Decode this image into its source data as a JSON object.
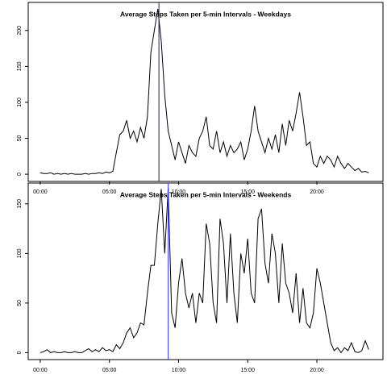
{
  "chart_data": [
    {
      "type": "line",
      "title": "Average Steps Taken per 5-min Intervals - Weekdays",
      "color": "#000000",
      "x": [
        0,
        0.25,
        0.5,
        0.75,
        1,
        1.25,
        1.5,
        1.75,
        2,
        2.25,
        2.5,
        2.75,
        3,
        3.25,
        3.5,
        3.75,
        4,
        4.25,
        4.5,
        4.75,
        5,
        5.25,
        5.5,
        5.75,
        6,
        6.25,
        6.5,
        6.75,
        7,
        7.25,
        7.5,
        7.75,
        8,
        8.25,
        8.5,
        8.75,
        9,
        9.25,
        9.5,
        9.75,
        10,
        10.25,
        10.5,
        10.75,
        11,
        11.25,
        11.5,
        11.75,
        12,
        12.25,
        12.5,
        12.75,
        13,
        13.25,
        13.5,
        13.75,
        14,
        14.25,
        14.5,
        14.75,
        15,
        15.25,
        15.5,
        15.75,
        16,
        16.25,
        16.5,
        16.75,
        17,
        17.25,
        17.5,
        17.75,
        18,
        18.25,
        18.5,
        18.75,
        19,
        19.25,
        19.5,
        19.75,
        20,
        20.25,
        20.5,
        20.75,
        21,
        21.25,
        21.5,
        21.75,
        22,
        22.25,
        22.5,
        22.75,
        23,
        23.25,
        23.5,
        23.75
      ],
      "values": [
        2,
        1,
        1,
        2,
        0,
        1,
        0,
        1,
        0,
        1,
        0,
        0,
        0,
        1,
        0,
        1,
        1,
        2,
        1,
        3,
        2,
        4,
        30,
        55,
        60,
        75,
        50,
        60,
        45,
        65,
        50,
        80,
        170,
        200,
        230,
        185,
        110,
        60,
        40,
        20,
        45,
        30,
        15,
        40,
        30,
        25,
        50,
        60,
        80,
        40,
        35,
        60,
        30,
        45,
        25,
        40,
        30,
        35,
        45,
        20,
        35,
        60,
        95,
        60,
        45,
        30,
        50,
        35,
        55,
        30,
        70,
        40,
        75,
        60,
        85,
        114,
        80,
        40,
        45,
        15,
        10,
        25,
        15,
        25,
        20,
        10,
        25,
        15,
        8,
        15,
        10,
        5,
        8,
        3,
        4,
        2
      ],
      "xlim": [
        -0.87,
        24.78
      ],
      "ylim": [
        -10,
        239
      ],
      "xticks": [
        {
          "value": 0,
          "label": "00:00"
        },
        {
          "value": 5,
          "label": "05:00"
        },
        {
          "value": 10,
          "label": "10:00"
        },
        {
          "value": 15,
          "label": "15:00"
        },
        {
          "value": 20,
          "label": "20:00"
        }
      ],
      "yticks": [
        0,
        50,
        100,
        150,
        200
      ],
      "vline": {
        "x": 8.58,
        "color": "#1c1c70"
      }
    },
    {
      "type": "line",
      "title": "Average Steps Taken per 5-min Intervals - Weekends",
      "color": "#000000",
      "x": [
        0,
        0.25,
        0.5,
        0.75,
        1,
        1.25,
        1.5,
        1.75,
        2,
        2.25,
        2.5,
        2.75,
        3,
        3.25,
        3.5,
        3.75,
        4,
        4.25,
        4.5,
        4.75,
        5,
        5.25,
        5.5,
        5.75,
        6,
        6.25,
        6.5,
        6.75,
        7,
        7.25,
        7.5,
        7.75,
        8,
        8.25,
        8.5,
        8.75,
        9,
        9.25,
        9.5,
        9.75,
        10,
        10.25,
        10.5,
        10.75,
        11,
        11.25,
        11.5,
        11.75,
        12,
        12.25,
        12.5,
        12.75,
        13,
        13.25,
        13.5,
        13.75,
        14,
        14.25,
        14.5,
        14.75,
        15,
        15.25,
        15.5,
        15.75,
        16,
        16.25,
        16.5,
        16.75,
        17,
        17.25,
        17.5,
        17.75,
        18,
        18.25,
        18.5,
        18.75,
        19,
        19.25,
        19.5,
        19.75,
        20,
        20.25,
        20.5,
        20.75,
        21,
        21.25,
        21.5,
        21.75,
        22,
        22.25,
        22.5,
        22.75,
        23,
        23.25,
        23.5,
        23.75
      ],
      "values": [
        0,
        1,
        3,
        0,
        1,
        0,
        0,
        1,
        0,
        0,
        1,
        0,
        0,
        2,
        4,
        1,
        3,
        1,
        5,
        2,
        3,
        1,
        8,
        4,
        10,
        20,
        25,
        15,
        20,
        30,
        28,
        60,
        88,
        88,
        130,
        165,
        100,
        166,
        40,
        25,
        70,
        95,
        60,
        45,
        60,
        30,
        60,
        50,
        130,
        110,
        50,
        30,
        135,
        110,
        50,
        120,
        60,
        30,
        100,
        80,
        115,
        60,
        50,
        135,
        145,
        90,
        70,
        120,
        100,
        50,
        110,
        70,
        60,
        40,
        80,
        30,
        65,
        30,
        25,
        40,
        85,
        70,
        50,
        30,
        10,
        2,
        5,
        0,
        5,
        2,
        10,
        1,
        0,
        2,
        12,
        3
      ],
      "xlim": [
        -0.87,
        24.78
      ],
      "ylim": [
        -7,
        171
      ],
      "xticks": [
        {
          "value": 0,
          "label": "00:00"
        },
        {
          "value": 5,
          "label": "05:00"
        },
        {
          "value": 10,
          "label": "10:00"
        },
        {
          "value": 15,
          "label": "15:00"
        },
        {
          "value": 20,
          "label": "20:00"
        }
      ],
      "yticks": [
        0,
        50,
        100,
        150
      ],
      "vline": {
        "x": 9.25,
        "color": "#3333ff"
      }
    }
  ]
}
